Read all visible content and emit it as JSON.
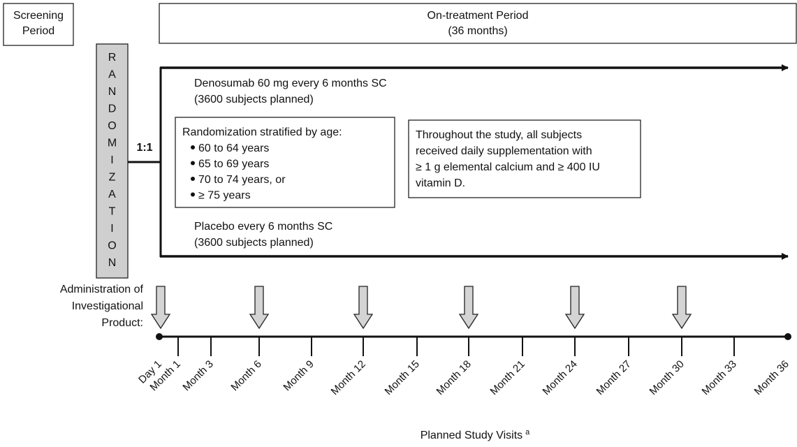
{
  "screening_period": {
    "lines": [
      "Screening",
      "Period"
    ]
  },
  "on_treatment_period": {
    "lines": [
      "On-treatment Period",
      "(36 months)"
    ]
  },
  "randomization": {
    "letters": [
      "R",
      "A",
      "N",
      "D",
      "O",
      "M",
      "I",
      "Z",
      "A",
      "T",
      "I",
      "O",
      "N"
    ],
    "ratio": "1:1"
  },
  "arm_active": {
    "lines": [
      "Denosumab 60 mg every 6 months SC",
      "(3600 subjects planned)"
    ]
  },
  "arm_placebo": {
    "lines": [
      "Placebo every 6 months SC",
      "(3600 subjects planned)"
    ]
  },
  "stratification": {
    "title": "Randomization stratified by age:",
    "items": [
      "60 to 64 years",
      "65 to 69 years",
      "70 to 74 years, or",
      "≥ 75 years"
    ]
  },
  "supplementation": {
    "lines": [
      "Throughout the study, all subjects",
      "received daily supplementation with",
      "≥ 1 g elemental calcium and ≥ 400 IU",
      "vitamin D."
    ]
  },
  "administration": {
    "lines": [
      "Administration of",
      "Investigational",
      "Product:"
    ]
  },
  "visits": [
    "Day 1",
    "Month 1",
    "Month 3",
    "Month 6",
    "Month 9",
    "Month 12",
    "Month 15",
    "Month 18",
    "Month 21",
    "Month 24",
    "Month 27",
    "Month 30",
    "Month 33",
    "Month 36"
  ],
  "footer": {
    "label": "Planned Study Visits",
    "footnote": "a"
  }
}
